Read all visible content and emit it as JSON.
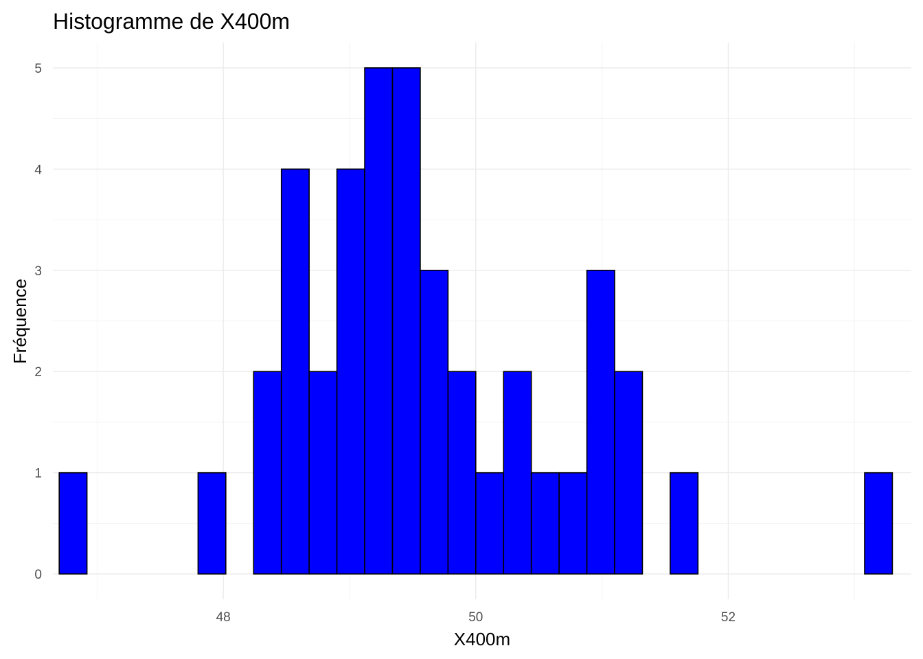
{
  "chart_data": {
    "type": "bar",
    "title": "Histogramme de X400m",
    "xlabel": "X400m",
    "ylabel": "Fréquence",
    "bar_color": "#0000ff",
    "bar_border_color": "#000000",
    "grid": true,
    "xlim": [
      46.65,
      53.45
    ],
    "ylim": [
      -0.25,
      5.25
    ],
    "x_ticks": [
      48,
      50,
      52
    ],
    "y_ticks": [
      0,
      1,
      2,
      3,
      4,
      5
    ],
    "bin_start": 46.7,
    "bin_width": 0.22,
    "counts": [
      1,
      0,
      0,
      0,
      0,
      1,
      0,
      2,
      4,
      2,
      4,
      5,
      5,
      3,
      2,
      1,
      2,
      1,
      1,
      3,
      2,
      0,
      1,
      0,
      0,
      0,
      0,
      0,
      0,
      1
    ]
  }
}
